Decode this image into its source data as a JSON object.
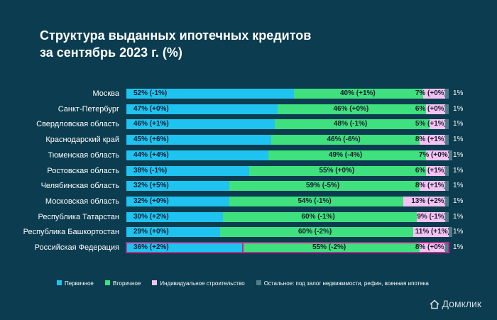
{
  "title_lines": [
    "Структура выданных ипотечных кредитов",
    "за сентябрь 2023 г. (%)"
  ],
  "brand": {
    "name": "Домклик",
    "icon": "house-logo-icon"
  },
  "colors": {
    "primary": "#1ec3f0",
    "secondary": "#3fe07e",
    "individual": "#f4c3f2",
    "other": "#4f7f8a",
    "highlight": "#b0308a"
  },
  "chart_data": {
    "type": "bar",
    "stacked": true,
    "orientation": "horizontal",
    "title": "Структура выданных ипотечных кредитов за сентябрь 2023 г. (%)",
    "categories": [
      "Москва",
      "Санкт-Петербург",
      "Свердловская область",
      "Краснодарский край",
      "Тюменская область",
      "Ростовская область",
      "Челябинская область",
      "Московская область",
      "Республика Татарстан",
      "Республика Башкортостан",
      "Российская Федерация"
    ],
    "highlighted_category": "Российская Федерация",
    "series": [
      {
        "name": "Первичное",
        "color": "#1ec3f0",
        "values": [
          52,
          47,
          46,
          45,
          44,
          38,
          32,
          32,
          30,
          29,
          36
        ],
        "labels": [
          "52% (-1%)",
          "47% (+0%)",
          "46% (+1%)",
          "45% (+6%)",
          "44% (+4%)",
          "38% (-1%)",
          "32% (+5%)",
          "32% (+0%)",
          "30% (+2%)",
          "29% (+0%)",
          "36% (+2%)"
        ]
      },
      {
        "name": "Вторичное",
        "color": "#3fe07e",
        "values": [
          40,
          46,
          48,
          46,
          49,
          55,
          59,
          54,
          60,
          60,
          55
        ],
        "labels": [
          "40% (+1%)",
          "46% (+0%)",
          "48% (-1%)",
          "46% (-6%)",
          "49% (-4%)",
          "55% (+0%)",
          "59% (-5%)",
          "54% (-1%)",
          "60% (-1%)",
          "60% (-2%)",
          "55% (-2%)"
        ]
      },
      {
        "name": "Индивидуальное строительство",
        "color": "#f4c3f2",
        "values": [
          7,
          6,
          5,
          8,
          7,
          6,
          8,
          13,
          9,
          11,
          8
        ],
        "labels": [
          "7% (+0%)",
          "6% (+0%)",
          "5% (+1%)",
          "8% (+1%)",
          "7% (+0%)",
          "6% (+1%)",
          "8% (+1%)",
          "13% (+2%)",
          "9% (-1%)",
          "11% (+1%)",
          "8% (+0%)"
        ]
      },
      {
        "name": "Остальное: под залог недвижимости, рефин, военная ипотека",
        "color": "#4f7f8a",
        "values": [
          1,
          1,
          1,
          1,
          1,
          1,
          1,
          1,
          1,
          1,
          1
        ],
        "labels": [
          "1%",
          "1%",
          "1%",
          "1%",
          "1%",
          "1%",
          "1%",
          "1%",
          "1%",
          "1%",
          "1%"
        ]
      }
    ],
    "xlim": [
      0,
      100
    ],
    "legend_position": "bottom"
  }
}
